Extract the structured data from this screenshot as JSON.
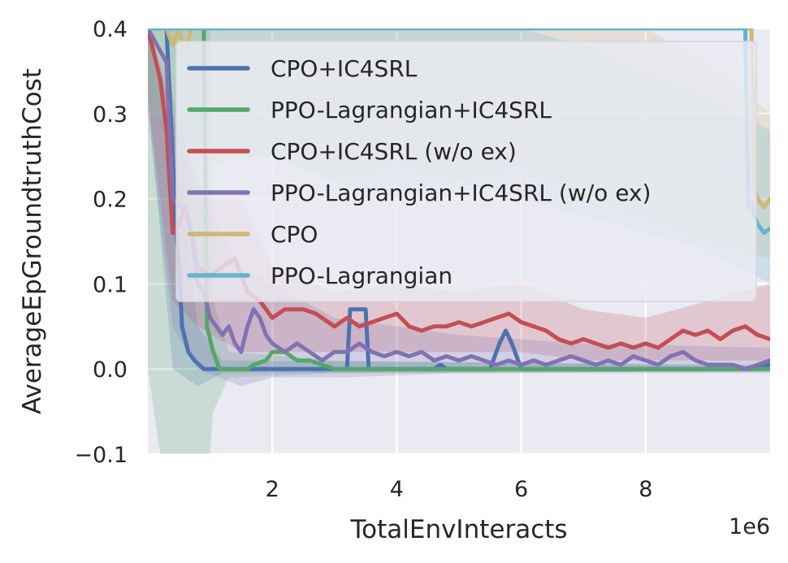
{
  "chart_data": {
    "type": "line",
    "xlabel": "TotalEnvInteracts",
    "ylabel": "AverageEpGroundtruthCost",
    "x_offset_label": "1e6",
    "xlim": [
      0.0,
      10.0
    ],
    "ylim": [
      -0.1,
      0.4
    ],
    "xticks": [
      2,
      4,
      6,
      8
    ],
    "xtick_labels": [
      "2",
      "4",
      "6",
      "8"
    ],
    "yticks": [
      -0.1,
      0.0,
      0.1,
      0.2,
      0.3,
      0.4
    ],
    "ytick_labels": [
      "−0.1",
      "0.0",
      "0.1",
      "0.2",
      "0.3",
      "0.4"
    ],
    "grid": true,
    "legend_position": "upper-right",
    "series": [
      {
        "name": "CPO+IC4SRL",
        "color": "#4C72B0",
        "points": [
          [
            0.0,
            0.4
          ],
          [
            0.3,
            0.4
          ],
          [
            0.45,
            0.17
          ],
          [
            0.5,
            0.12
          ],
          [
            0.55,
            0.05
          ],
          [
            0.65,
            0.02
          ],
          [
            0.75,
            0.01
          ],
          [
            0.9,
            0.0
          ],
          [
            3.2,
            0.0
          ],
          [
            3.25,
            0.07
          ],
          [
            3.5,
            0.07
          ],
          [
            3.55,
            0.0
          ],
          [
            4.6,
            0.0
          ],
          [
            4.7,
            0.005
          ],
          [
            4.8,
            0.0
          ],
          [
            5.5,
            0.0
          ],
          [
            5.65,
            0.03
          ],
          [
            5.75,
            0.045
          ],
          [
            5.85,
            0.03
          ],
          [
            6.0,
            0.0
          ],
          [
            9.8,
            0.0
          ],
          [
            10.0,
            0.005
          ]
        ],
        "band": [
          [
            0.0,
            0.4,
            0.32
          ],
          [
            0.4,
            0.3,
            0.0
          ],
          [
            0.8,
            0.05,
            -0.02
          ],
          [
            1.2,
            0.01,
            -0.005
          ],
          [
            10.0,
            0.005,
            -0.003
          ]
        ]
      },
      {
        "name": "PPO-Lagrangian+IC4SRL",
        "color": "#55A868",
        "points": [
          [
            0.0,
            0.4
          ],
          [
            0.9,
            0.4
          ],
          [
            0.95,
            0.05
          ],
          [
            1.05,
            0.02
          ],
          [
            1.15,
            0.0
          ],
          [
            1.6,
            0.0
          ],
          [
            1.7,
            0.005
          ],
          [
            1.9,
            0.01
          ],
          [
            2.0,
            0.02
          ],
          [
            2.2,
            0.02
          ],
          [
            2.4,
            0.01
          ],
          [
            2.6,
            0.01
          ],
          [
            2.8,
            0.005
          ],
          [
            3.0,
            0.0
          ],
          [
            10.0,
            0.0
          ]
        ],
        "band": [
          [
            0.0,
            0.4,
            0.0
          ],
          [
            0.2,
            0.4,
            -0.1
          ],
          [
            1.0,
            0.4,
            -0.1
          ],
          [
            1.05,
            0.08,
            -0.05
          ],
          [
            1.3,
            0.02,
            -0.01
          ],
          [
            3.0,
            0.01,
            -0.005
          ],
          [
            10.0,
            0.003,
            -0.003
          ]
        ]
      },
      {
        "name": "CPO+IC4SRL (w/o ex)",
        "color": "#C44E52",
        "points": [
          [
            0.0,
            0.4
          ],
          [
            0.2,
            0.34
          ],
          [
            0.3,
            0.28
          ],
          [
            0.4,
            0.16
          ],
          [
            0.5,
            0.17
          ],
          [
            0.6,
            0.19
          ],
          [
            0.7,
            0.16
          ],
          [
            0.8,
            0.12
          ],
          [
            1.0,
            0.11
          ],
          [
            1.2,
            0.12
          ],
          [
            1.4,
            0.13
          ],
          [
            1.6,
            0.09
          ],
          [
            1.8,
            0.08
          ],
          [
            2.0,
            0.06
          ],
          [
            2.2,
            0.07
          ],
          [
            2.5,
            0.07
          ],
          [
            2.7,
            0.065
          ],
          [
            3.0,
            0.05
          ],
          [
            3.2,
            0.06
          ],
          [
            3.4,
            0.05
          ],
          [
            3.6,
            0.055
          ],
          [
            3.8,
            0.06
          ],
          [
            4.0,
            0.065
          ],
          [
            4.2,
            0.05
          ],
          [
            4.4,
            0.045
          ],
          [
            4.6,
            0.05
          ],
          [
            4.8,
            0.05
          ],
          [
            5.0,
            0.055
          ],
          [
            5.2,
            0.05
          ],
          [
            5.4,
            0.055
          ],
          [
            5.6,
            0.06
          ],
          [
            5.8,
            0.065
          ],
          [
            6.0,
            0.055
          ],
          [
            6.2,
            0.05
          ],
          [
            6.4,
            0.045
          ],
          [
            6.6,
            0.035
          ],
          [
            6.8,
            0.03
          ],
          [
            7.0,
            0.035
          ],
          [
            7.2,
            0.03
          ],
          [
            7.4,
            0.025
          ],
          [
            7.6,
            0.03
          ],
          [
            7.8,
            0.025
          ],
          [
            8.0,
            0.03
          ],
          [
            8.2,
            0.025
          ],
          [
            8.4,
            0.035
          ],
          [
            8.6,
            0.045
          ],
          [
            8.8,
            0.04
          ],
          [
            9.0,
            0.045
          ],
          [
            9.2,
            0.035
          ],
          [
            9.4,
            0.045
          ],
          [
            9.6,
            0.05
          ],
          [
            9.8,
            0.04
          ],
          [
            10.0,
            0.035
          ]
        ],
        "band": [
          [
            0.0,
            0.4,
            0.32
          ],
          [
            0.4,
            0.3,
            0.08
          ],
          [
            0.8,
            0.2,
            0.05
          ],
          [
            1.5,
            0.2,
            0.02
          ],
          [
            2.0,
            0.12,
            0.02
          ],
          [
            3.0,
            0.09,
            0.02
          ],
          [
            4.0,
            0.1,
            0.02
          ],
          [
            5.0,
            0.09,
            0.02
          ],
          [
            6.0,
            0.1,
            0.02
          ],
          [
            7.0,
            0.07,
            0.01
          ],
          [
            8.0,
            0.06,
            0.01
          ],
          [
            9.0,
            0.08,
            0.01
          ],
          [
            10.0,
            0.1,
            0.01
          ]
        ]
      },
      {
        "name": "PPO-Lagrangian+IC4SRL (w/o ex)",
        "color": "#8172B2",
        "points": [
          [
            0.0,
            0.4
          ],
          [
            0.3,
            0.36
          ],
          [
            0.4,
            0.2
          ],
          [
            0.5,
            0.19
          ],
          [
            0.6,
            0.19
          ],
          [
            0.7,
            0.16
          ],
          [
            0.8,
            0.1
          ],
          [
            0.9,
            0.09
          ],
          [
            1.0,
            0.06
          ],
          [
            1.2,
            0.04
          ],
          [
            1.3,
            0.05
          ],
          [
            1.4,
            0.03
          ],
          [
            1.5,
            0.02
          ],
          [
            1.6,
            0.05
          ],
          [
            1.7,
            0.07
          ],
          [
            1.8,
            0.06
          ],
          [
            1.9,
            0.04
          ],
          [
            2.0,
            0.03
          ],
          [
            2.2,
            0.02
          ],
          [
            2.4,
            0.03
          ],
          [
            2.6,
            0.02
          ],
          [
            2.8,
            0.01
          ],
          [
            3.0,
            0.02
          ],
          [
            3.2,
            0.02
          ],
          [
            3.4,
            0.03
          ],
          [
            3.6,
            0.02
          ],
          [
            3.8,
            0.015
          ],
          [
            4.0,
            0.02
          ],
          [
            4.2,
            0.015
          ],
          [
            4.4,
            0.02
          ],
          [
            4.6,
            0.01
          ],
          [
            4.8,
            0.015
          ],
          [
            5.0,
            0.01
          ],
          [
            5.2,
            0.015
          ],
          [
            5.4,
            0.01
          ],
          [
            5.6,
            0.005
          ],
          [
            5.8,
            0.01
          ],
          [
            6.0,
            0.005
          ],
          [
            6.2,
            0.01
          ],
          [
            6.4,
            0.005
          ],
          [
            6.6,
            0.01
          ],
          [
            6.8,
            0.015
          ],
          [
            7.0,
            0.01
          ],
          [
            7.2,
            0.005
          ],
          [
            7.4,
            0.01
          ],
          [
            7.6,
            0.005
          ],
          [
            7.8,
            0.015
          ],
          [
            8.0,
            0.01
          ],
          [
            8.2,
            0.005
          ],
          [
            8.4,
            0.015
          ],
          [
            8.6,
            0.02
          ],
          [
            8.8,
            0.01
          ],
          [
            9.0,
            0.005
          ],
          [
            9.4,
            0.005
          ],
          [
            9.6,
            0.0
          ],
          [
            9.8,
            0.005
          ],
          [
            10.0,
            0.01
          ]
        ],
        "band": [
          [
            0.0,
            0.4,
            0.3
          ],
          [
            0.4,
            0.32,
            0.05
          ],
          [
            0.8,
            0.22,
            0.0
          ],
          [
            1.5,
            0.12,
            -0.02
          ],
          [
            2.0,
            0.1,
            -0.01
          ],
          [
            3.0,
            0.06,
            -0.01
          ],
          [
            5.0,
            0.04,
            -0.005
          ],
          [
            7.0,
            0.03,
            -0.005
          ],
          [
            10.0,
            0.025,
            -0.005
          ]
        ]
      },
      {
        "name": "CPO",
        "color": "#CCB974",
        "points": [
          [
            0.0,
            0.4
          ],
          [
            0.3,
            0.4
          ],
          [
            0.4,
            0.38
          ],
          [
            0.5,
            0.4
          ],
          [
            0.6,
            0.37
          ],
          [
            0.7,
            0.4
          ],
          [
            1.0,
            0.4
          ],
          [
            9.7,
            0.4
          ],
          [
            9.75,
            0.21
          ],
          [
            9.8,
            0.2
          ],
          [
            9.9,
            0.19
          ],
          [
            10.0,
            0.2
          ]
        ],
        "band": [
          [
            0.0,
            0.4,
            0.3
          ],
          [
            0.5,
            0.4,
            0.28
          ],
          [
            1.0,
            0.4,
            0.24
          ],
          [
            2.0,
            0.4,
            0.25
          ],
          [
            3.0,
            0.4,
            0.22
          ],
          [
            4.0,
            0.4,
            0.24
          ],
          [
            5.0,
            0.4,
            0.22
          ],
          [
            6.0,
            0.4,
            0.24
          ],
          [
            7.0,
            0.4,
            0.2
          ],
          [
            8.0,
            0.4,
            0.18
          ],
          [
            9.0,
            0.36,
            0.15
          ],
          [
            10.0,
            0.3,
            0.13
          ]
        ]
      },
      {
        "name": "PPO-Lagrangian",
        "color": "#64B5CD",
        "points": [
          [
            0.0,
            0.4
          ],
          [
            9.6,
            0.4
          ],
          [
            9.65,
            0.19
          ],
          [
            9.7,
            0.195
          ],
          [
            9.75,
            0.18
          ],
          [
            9.8,
            0.17
          ],
          [
            9.9,
            0.16
          ],
          [
            10.0,
            0.165
          ]
        ],
        "band": [
          [
            0.0,
            0.4,
            0.3
          ],
          [
            1.0,
            0.4,
            0.25
          ],
          [
            2.0,
            0.4,
            0.25
          ],
          [
            3.0,
            0.4,
            0.22
          ],
          [
            4.0,
            0.4,
            0.2
          ],
          [
            5.0,
            0.4,
            0.22
          ],
          [
            6.0,
            0.4,
            0.2
          ],
          [
            7.0,
            0.38,
            0.18
          ],
          [
            8.0,
            0.35,
            0.16
          ],
          [
            9.0,
            0.32,
            0.14
          ],
          [
            10.0,
            0.28,
            0.1
          ]
        ]
      }
    ]
  }
}
